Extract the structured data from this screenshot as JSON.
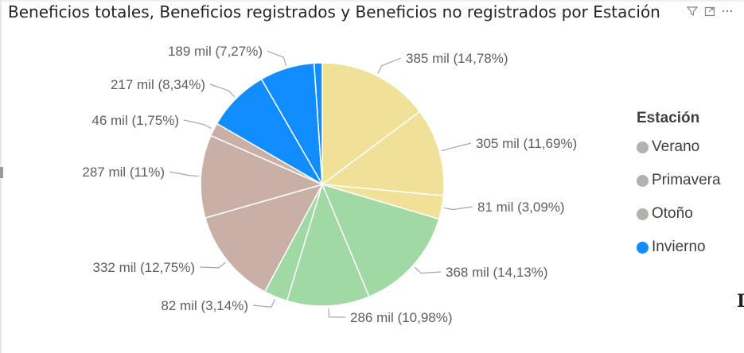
{
  "visual": {
    "title": "Beneficios totales, Beneficios registrados y Beneficios no registrados por Estación",
    "header_icons": [
      "filter-icon",
      "focus-mode-icon",
      "more-options-icon"
    ],
    "side_glyph": "I"
  },
  "chart_data": {
    "type": "pie",
    "title": "Beneficios totales, Beneficios registrados y Beneficios no registrados por Estación",
    "legend_title": "Estación",
    "legend_position": "right",
    "legend": [
      {
        "name": "Verano",
        "color": "#b3b0ad"
      },
      {
        "name": "Primavera",
        "color": "#b3b0ad"
      },
      {
        "name": "Otoño",
        "color": "#b3b0ad"
      },
      {
        "name": "Invierno",
        "color": "#118dff"
      }
    ],
    "slices": [
      {
        "season": "Verano",
        "value": 385,
        "percent": 14.78,
        "label": "385 mil (14,78%)",
        "color": "#f0e199"
      },
      {
        "season": "Verano",
        "value": 305,
        "percent": 11.69,
        "label": "305 mil (11,69%)",
        "color": "#f0e199"
      },
      {
        "season": "Verano",
        "value": 81,
        "percent": 3.09,
        "label": "81 mil (3,09%)",
        "color": "#f0e199"
      },
      {
        "season": "Primavera",
        "value": 368,
        "percent": 14.13,
        "label": "368 mil (14,13%)",
        "color": "#a0d9a4"
      },
      {
        "season": "Primavera",
        "value": 286,
        "percent": 10.98,
        "label": "286 mil (10,98%)",
        "color": "#a0d9a4"
      },
      {
        "season": "Primavera",
        "value": 82,
        "percent": 3.14,
        "label": "82 mil (3,14%)",
        "color": "#a0d9a4"
      },
      {
        "season": "Otoño",
        "value": 332,
        "percent": 12.75,
        "label": "332 mil (12,75%)",
        "color": "#c9b0a6"
      },
      {
        "season": "Otoño",
        "value": 287,
        "percent": 11.0,
        "label": "287 mil (11%)",
        "color": "#c9b0a6"
      },
      {
        "season": "Otoño",
        "value": 46,
        "percent": 1.75,
        "label": "46 mil (1,75%)",
        "color": "#c9b0a6"
      },
      {
        "season": "Invierno",
        "value": 217,
        "percent": 8.34,
        "label": "217 mil (8,34%)",
        "color": "#118dff"
      },
      {
        "season": "Invierno",
        "value": 189,
        "percent": 7.27,
        "label": "189 mil (7,27%)",
        "color": "#118dff"
      },
      {
        "season": "Invierno",
        "value": 28,
        "percent": 1.08,
        "label": "",
        "color": "#118dff"
      }
    ]
  }
}
